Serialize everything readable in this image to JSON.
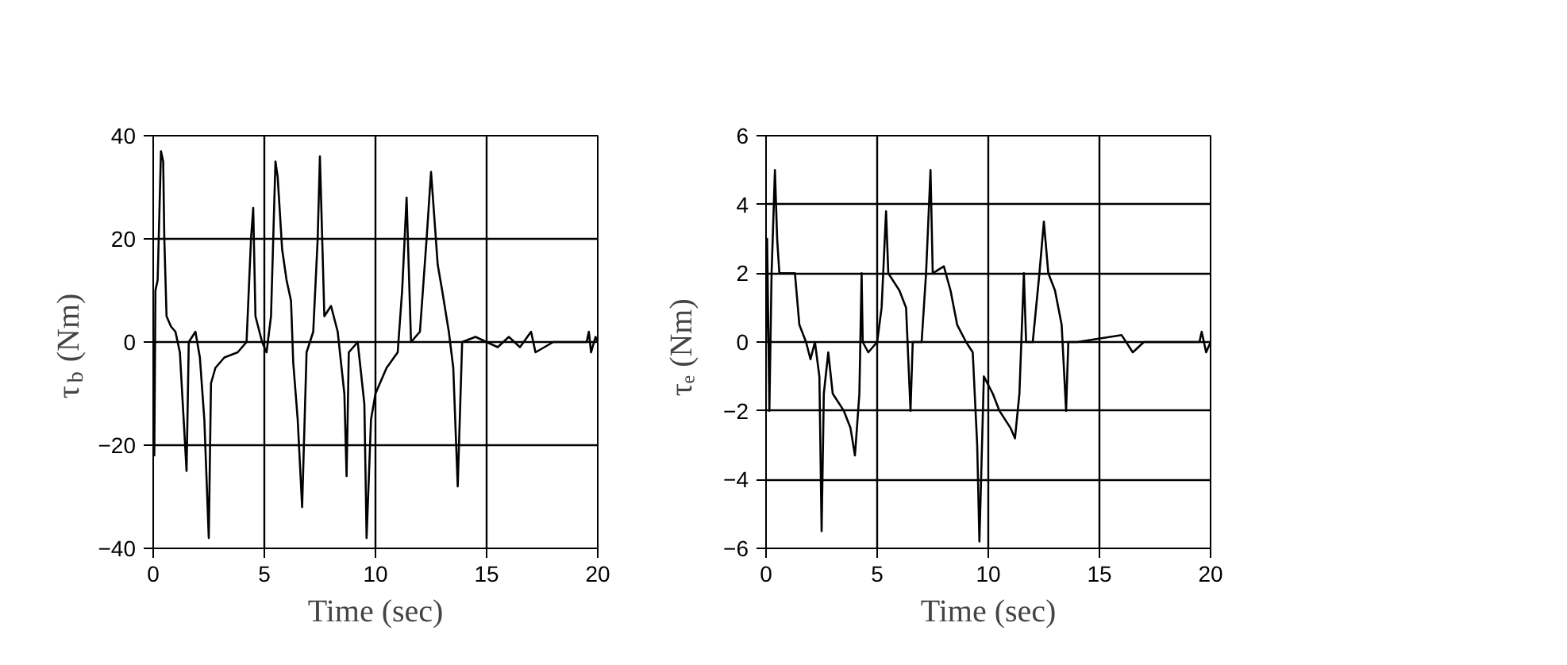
{
  "chart_data": [
    {
      "type": "line",
      "xlabel": "Time (sec)",
      "ylabel": "τ$_{b}$ (Nm)",
      "color": "#000000",
      "grid": true,
      "xlim": [
        0,
        20
      ],
      "ylim": [
        -40,
        40
      ],
      "xticks": [
        0,
        5,
        10,
        15,
        20
      ],
      "yticks": [
        -40,
        -20,
        0,
        20,
        40
      ],
      "x": [
        0,
        0.05,
        0.1,
        0.2,
        0.35,
        0.45,
        0.5,
        0.6,
        0.8,
        1.0,
        1.2,
        1.5,
        1.6,
        1.9,
        2.1,
        2.3,
        2.5,
        2.6,
        2.8,
        3.2,
        3.8,
        4.2,
        4.4,
        4.5,
        4.6,
        4.9,
        5.1,
        5.3,
        5.5,
        5.6,
        5.8,
        6.0,
        6.2,
        6.3,
        6.5,
        6.7,
        6.9,
        7.2,
        7.4,
        7.5,
        7.7,
        8.0,
        8.3,
        8.6,
        8.7,
        8.8,
        9.2,
        9.5,
        9.6,
        9.8,
        10.0,
        10.5,
        11.0,
        11.2,
        11.4,
        11.6,
        12.0,
        12.3,
        12.5,
        12.8,
        13.0,
        13.3,
        13.5,
        13.7,
        13.9,
        14.5,
        15.5,
        16,
        16.5,
        17,
        17.2,
        18,
        19.5,
        19.6,
        19.7,
        19.9,
        20
      ],
      "values": [
        0,
        -22,
        10,
        12,
        37,
        35,
        20,
        5,
        3,
        2,
        -2,
        -25,
        0,
        2,
        -3,
        -15,
        -38,
        -8,
        -5,
        -3,
        -2,
        0,
        20,
        26,
        5,
        0,
        -2,
        5,
        35,
        32,
        18,
        12,
        8,
        -4,
        -15,
        -32,
        -2,
        2,
        20,
        36,
        5,
        7,
        2,
        -10,
        -26,
        -2,
        0,
        -12,
        -38,
        -15,
        -10,
        -5,
        -2,
        10,
        28,
        0,
        2,
        20,
        33,
        15,
        10,
        2,
        -5,
        -28,
        0,
        1,
        -1,
        1,
        -1,
        2,
        -2,
        0,
        0,
        2,
        -2,
        1,
        0
      ]
    },
    {
      "type": "line",
      "xlabel": "Time (sec)",
      "ylabel": "τₑ (Nm)",
      "color": "#000000",
      "grid": true,
      "xlim": [
        0,
        20
      ],
      "ylim": [
        -6,
        6
      ],
      "xticks": [
        0,
        5,
        10,
        15,
        20
      ],
      "yticks": [
        -6,
        -4,
        -2,
        0,
        2,
        4,
        6
      ],
      "x": [
        0,
        0.05,
        0.15,
        0.25,
        0.4,
        0.5,
        0.6,
        1.0,
        1.3,
        1.5,
        1.8,
        2.0,
        2.2,
        2.4,
        2.5,
        2.6,
        2.8,
        3.0,
        3.5,
        3.8,
        4.0,
        4.2,
        4.3,
        4.35,
        4.6,
        5.0,
        5.2,
        5.4,
        5.5,
        6.0,
        6.3,
        6.5,
        6.6,
        7.0,
        7.2,
        7.4,
        7.5,
        8.0,
        8.3,
        8.6,
        9.0,
        9.3,
        9.5,
        9.6,
        9.8,
        10.2,
        10.5,
        11.0,
        11.2,
        11.4,
        11.6,
        11.7,
        12.0,
        12.3,
        12.5,
        12.7,
        13.0,
        13.3,
        13.5,
        13.6,
        14,
        16,
        16.5,
        17,
        19.5,
        19.6,
        19.8,
        20
      ],
      "values": [
        0,
        3,
        -2,
        2,
        5,
        3,
        2,
        2,
        2,
        0.5,
        0,
        -0.5,
        0,
        -1,
        -5.5,
        -1.5,
        -0.3,
        -1.5,
        -2,
        -2.5,
        -3.3,
        -1.5,
        2,
        0,
        -0.3,
        0,
        1,
        3.8,
        2,
        1.5,
        1,
        -2,
        0,
        0,
        2,
        5,
        2,
        2.2,
        1.5,
        0.5,
        0,
        -0.3,
        -3,
        -5.8,
        -1,
        -1.5,
        -2,
        -2.5,
        -2.8,
        -1.5,
        2,
        0,
        0,
        2,
        3.5,
        2,
        1.5,
        0.5,
        -2,
        0,
        0,
        0.2,
        -0.3,
        0,
        0,
        0.3,
        -0.3,
        0
      ]
    }
  ]
}
